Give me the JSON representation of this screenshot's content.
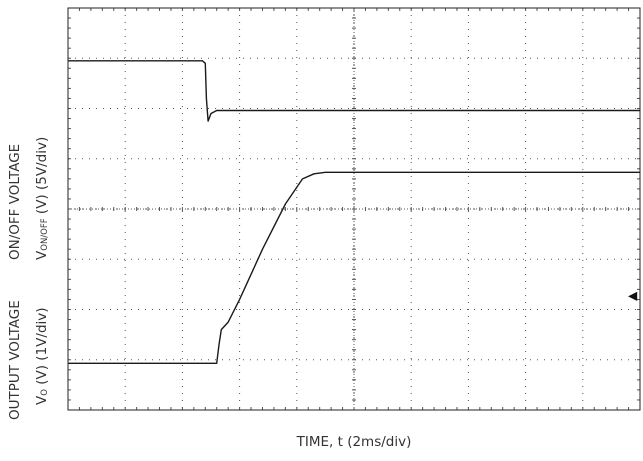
{
  "chart_data": {
    "type": "line",
    "xlabel": "TIME, t (2ms/div)",
    "ylabels": [
      {
        "text": "ON/OFF VOLTAGE"
      },
      {
        "prefix": "V",
        "sub": "ON/OFF",
        "suffix": " (V) (5V/div)"
      },
      {
        "text": "OUTPUT VOLTAGE"
      },
      {
        "prefix": "V",
        "sub": "O",
        "suffix": " (V) (1V/div)"
      }
    ],
    "xlim": [
      0,
      10
    ],
    "ylim": [
      0,
      8
    ],
    "grid": {
      "x_divisions": 10,
      "y_divisions": 8,
      "style": "dotted"
    },
    "series": [
      {
        "x": [
          0,
          2.35,
          2.4,
          2.42,
          2.45,
          2.5,
          2.6,
          3.0,
          10
        ],
        "y": [
          6.95,
          6.95,
          6.9,
          6.2,
          5.75,
          5.9,
          5.96,
          5.96,
          5.96
        ]
      },
      {
        "x": [
          0,
          2.6,
          2.64,
          2.68,
          2.8,
          3.0,
          3.4,
          3.8,
          4.1,
          4.3,
          4.5,
          10
        ],
        "y": [
          0.93,
          0.93,
          1.3,
          1.6,
          1.75,
          2.2,
          3.2,
          4.1,
          4.6,
          4.7,
          4.73,
          4.73
        ]
      }
    ],
    "markers": [
      {
        "symbol": "◀",
        "side": "right",
        "level": 2.3
      }
    ],
    "line_color": "#1a1a1a",
    "grid_color": "#555555"
  }
}
